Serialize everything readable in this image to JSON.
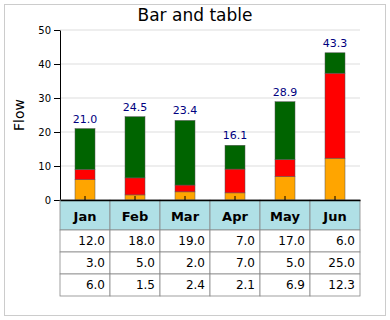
{
  "chart_data": {
    "type": "bar",
    "title": "Bar and table",
    "y_label": "Flow",
    "categories": [
      "Jan",
      "Feb",
      "Mar",
      "Apr",
      "May",
      "Jun"
    ],
    "series": [
      {
        "color": "#ffa500",
        "values": [
          6.0,
          1.5,
          2.4,
          2.1,
          6.9,
          12.3
        ],
        "value_labels": [
          "6.0",
          "1.5",
          "2.4",
          "2.1",
          "6.9",
          "12.3"
        ]
      },
      {
        "color": "#ff0000",
        "values": [
          3.0,
          5.0,
          2.0,
          7.0,
          5.0,
          25.0
        ],
        "value_labels": [
          "3.0",
          "5.0",
          "2.0",
          "7.0",
          "5.0",
          "25.0"
        ]
      },
      {
        "color": "#006400",
        "values": [
          12.0,
          18.0,
          19.0,
          7.0,
          17.0,
          6.0
        ],
        "value_labels": [
          "12.0",
          "18.0",
          "19.0",
          "7.0",
          "17.0",
          "6.0"
        ]
      }
    ],
    "totals": {
      "values": [
        21.0,
        24.5,
        23.4,
        16.1,
        28.9,
        43.3
      ],
      "value_labels": [
        "21.0",
        "24.5",
        "23.4",
        "16.1",
        "28.9",
        "43.3"
      ]
    },
    "ylim": [
      0,
      50
    ],
    "yticks": [
      0,
      10,
      20,
      30,
      40,
      50
    ],
    "grid": true,
    "stacked": true
  }
}
